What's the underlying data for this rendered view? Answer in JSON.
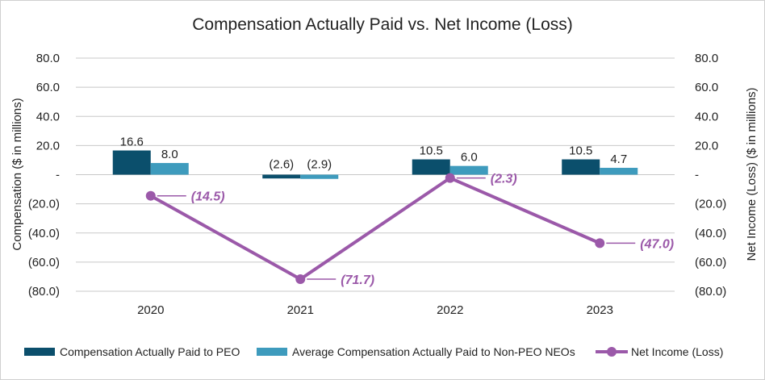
{
  "chart_data": {
    "type": "bar+line",
    "title": "Compensation Actually Paid vs. Net Income (Loss)",
    "categories": [
      "2020",
      "2021",
      "2022",
      "2023"
    ],
    "ylabel_left": "Compensation ($ in millions)",
    "ylabel_right": "Net Income (Loss) ($ in millions)",
    "ylim": [
      -80,
      80
    ],
    "y_ticks": [
      80,
      60,
      40,
      20,
      0,
      -20,
      -40,
      -60,
      -80
    ],
    "y_tick_labels": [
      "80.0",
      "60.0",
      "40.0",
      "20.0",
      "-",
      "(20.0)",
      "(40.0)",
      "(60.0)",
      "(80.0)"
    ],
    "series": [
      {
        "name": "Compensation Actually Paid to PEO",
        "kind": "bar",
        "color": "#0b4f6c",
        "values": [
          16.6,
          -2.6,
          10.5,
          10.5
        ],
        "labels": [
          "16.6",
          "(2.6)",
          "10.5",
          "10.5"
        ]
      },
      {
        "name": "Average Compensation Actually Paid to Non-PEO NEOs",
        "kind": "bar",
        "color": "#3e9bbd",
        "values": [
          8.0,
          -2.9,
          6.0,
          4.7
        ],
        "labels": [
          "8.0",
          "(2.9)",
          "6.0",
          "4.7"
        ]
      },
      {
        "name": "Net Income (Loss)",
        "kind": "line",
        "color": "#9b59a9",
        "values": [
          -14.5,
          -71.7,
          -2.3,
          -47.0
        ],
        "labels": [
          "(14.5)",
          "(71.7)",
          "(2.3)",
          "(47.0)"
        ]
      }
    ]
  }
}
